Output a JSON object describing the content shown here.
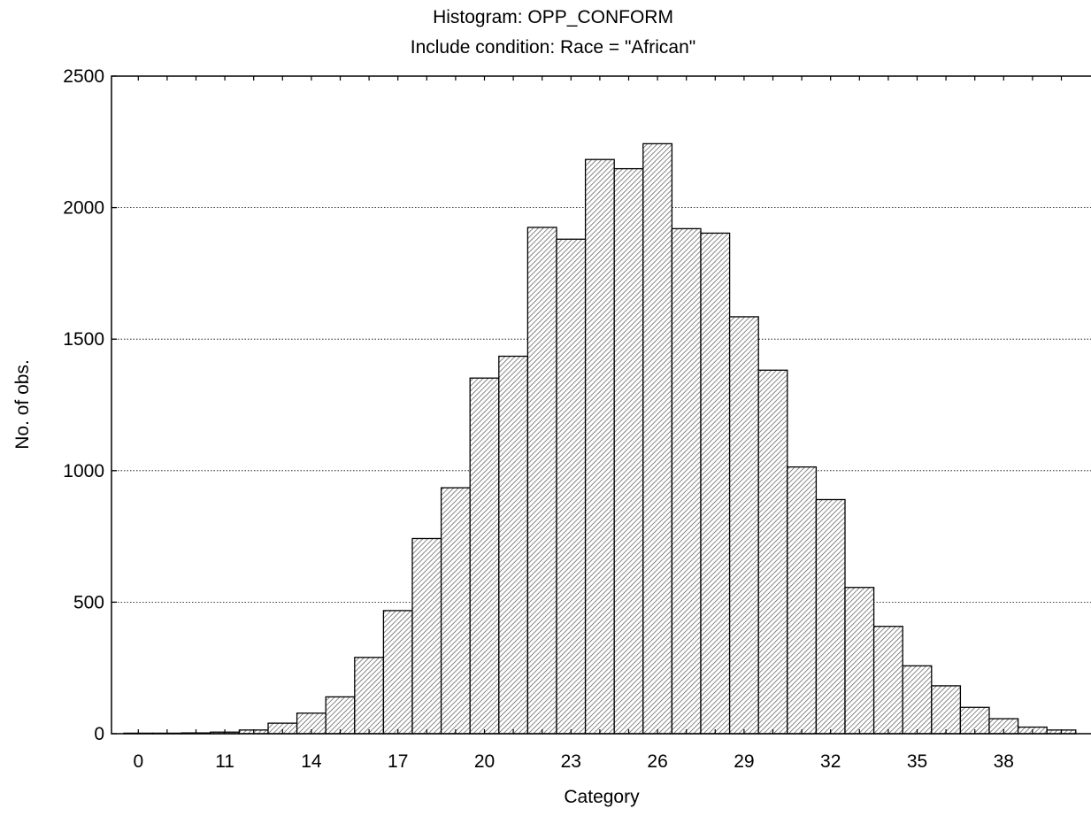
{
  "chart_data": {
    "type": "bar",
    "title": "Histogram: OPP_CONFORM",
    "subtitle": "Include condition: Race = \"African\"",
    "xlabel": "Category",
    "ylabel": "No. of obs.",
    "ylim": [
      0,
      2500
    ],
    "yticks": [
      0,
      500,
      1000,
      1500,
      2000,
      2500
    ],
    "grid": "horizontal dotted",
    "x_tick_labels": [
      {
        "label": "0",
        "index": 0
      },
      {
        "label": "11",
        "index": 3
      },
      {
        "label": "14",
        "index": 6
      },
      {
        "label": "17",
        "index": 9
      },
      {
        "label": "20",
        "index": 12
      },
      {
        "label": "23",
        "index": 15
      },
      {
        "label": "26",
        "index": 18
      },
      {
        "label": "29",
        "index": 21
      },
      {
        "label": "32",
        "index": 24
      },
      {
        "label": "35",
        "index": 27
      },
      {
        "label": "38",
        "index": 30
      }
    ],
    "values": [
      2,
      2,
      3,
      6,
      14,
      40,
      78,
      140,
      290,
      468,
      742,
      935,
      1352,
      1435,
      1925,
      1880,
      2183,
      2148,
      2243,
      1920,
      1903,
      1585,
      1382,
      1014,
      890,
      556,
      408,
      258,
      182,
      100,
      57,
      25,
      14
    ]
  }
}
